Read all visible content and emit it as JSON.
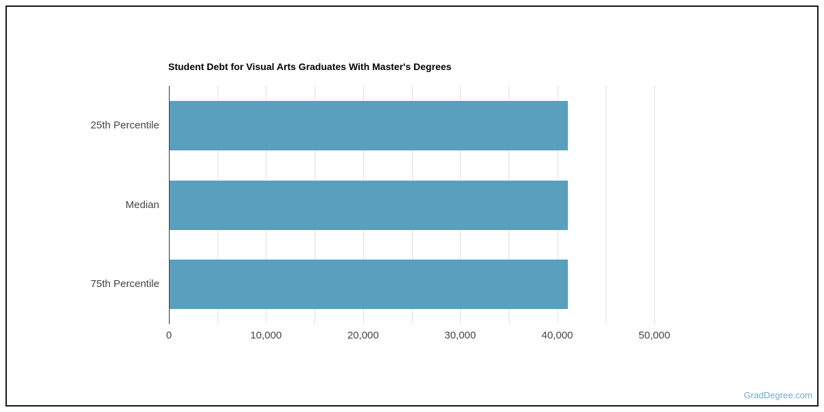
{
  "page": {
    "watermark": "GradDegree.com"
  },
  "chart_data": {
    "type": "bar",
    "orientation": "horizontal",
    "title": "Student Debt for Visual Arts Graduates With Master's Degrees",
    "categories": [
      "25th Percentile",
      "Median",
      "75th Percentile"
    ],
    "values": [
      41000,
      41000,
      41000
    ],
    "xlabel": "",
    "ylabel": "",
    "xlim": [
      0,
      55000
    ],
    "xticks": [
      0,
      10000,
      20000,
      30000,
      40000,
      50000
    ],
    "xtick_labels": [
      "0",
      "10,000",
      "20,000",
      "30,000",
      "40,000",
      "50,000"
    ],
    "minor_grid_step": 5000,
    "grid": true,
    "legend": false,
    "bar_color": "#5A9FBD",
    "colors": {
      "axis_line": "#333333",
      "grid_line": "#e0e0e0",
      "tick_label": "#444444",
      "title": "#000000",
      "watermark": "#6FA9C9",
      "border": "#161616"
    }
  }
}
